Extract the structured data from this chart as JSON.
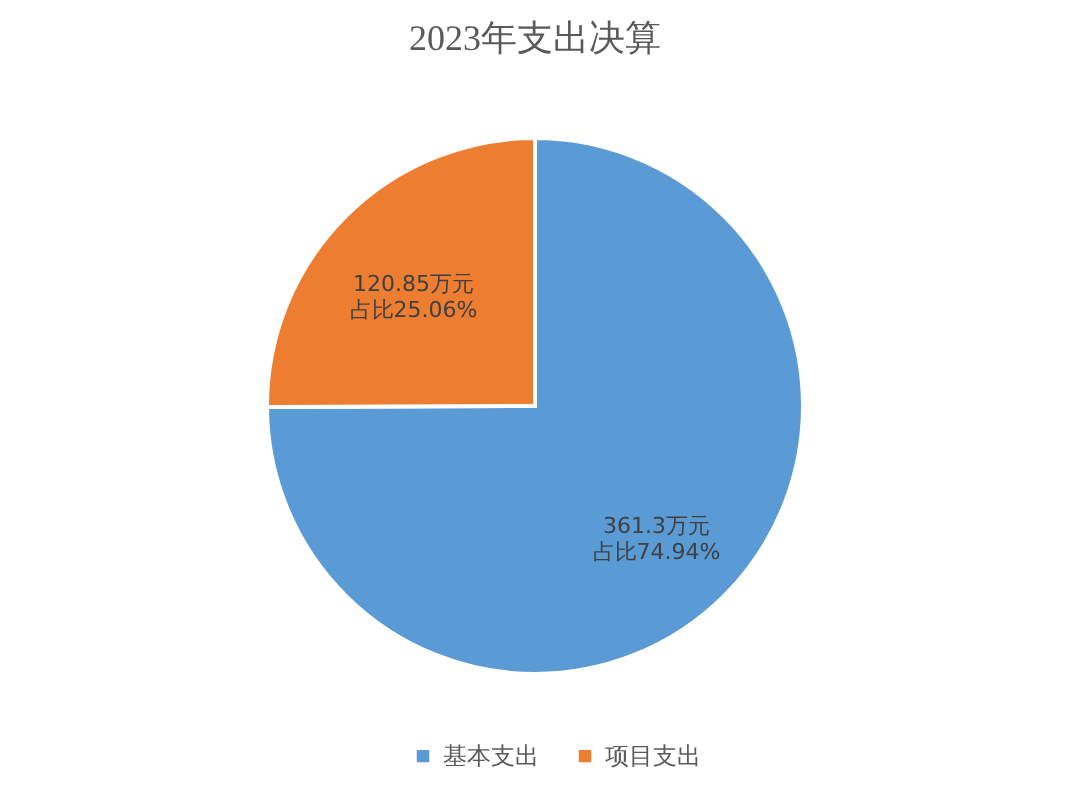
{
  "chart_data": {
    "type": "pie",
    "title": "2023年支出决算",
    "categories": [
      "基本支出",
      "项目支出"
    ],
    "values": [
      74.94,
      25.06
    ],
    "colors": [
      "#5b9bd5",
      "#ed7d31"
    ],
    "value_labels": [
      [
        "361.3万元",
        "占比74.94%"
      ],
      [
        "120.85万元",
        "占比25.06%"
      ]
    ],
    "legend": "bottom"
  }
}
